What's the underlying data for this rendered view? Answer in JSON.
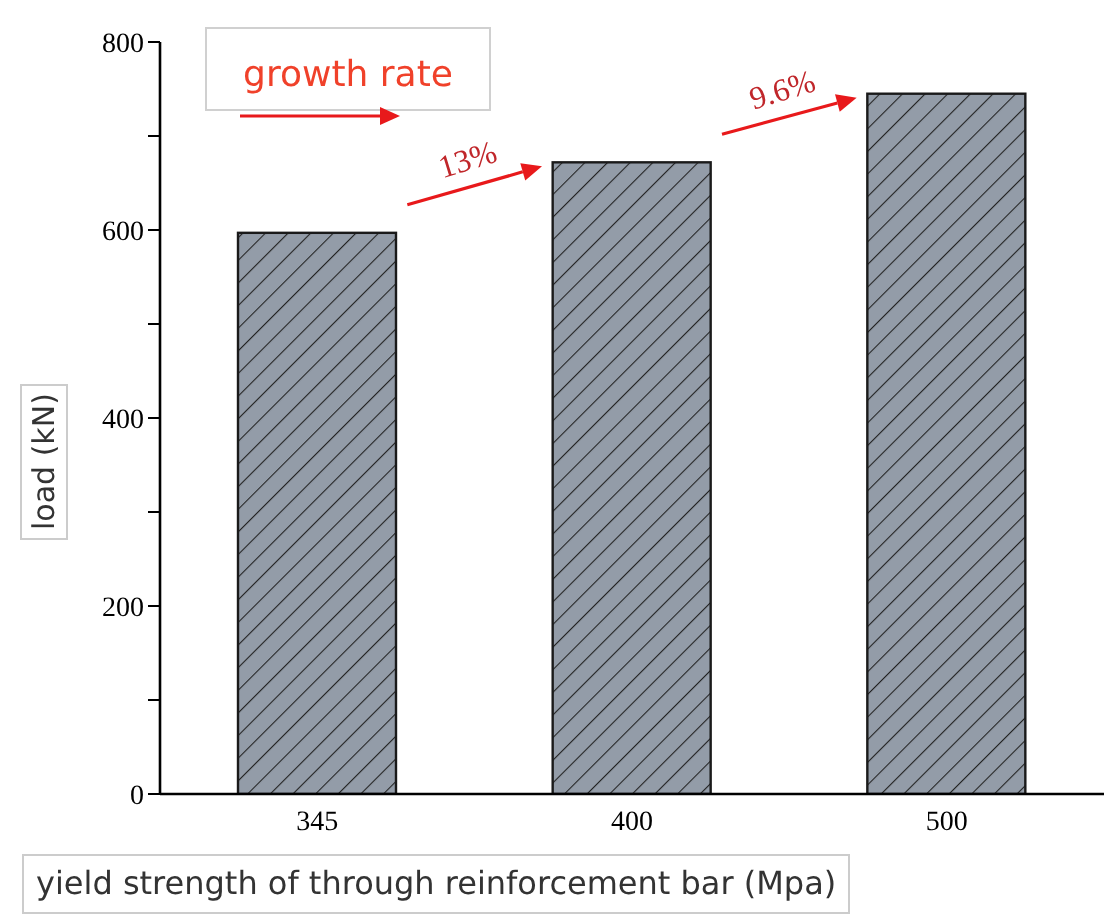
{
  "chart_data": {
    "type": "bar",
    "xlabel": "yield strength of through reinforcement bar (Mpa)",
    "ylabel": "load (kN)",
    "categories": [
      "345",
      "400",
      "500"
    ],
    "values": [
      597,
      672,
      745
    ],
    "color": "#939ca8",
    "ylim": [
      0,
      800
    ],
    "yticks": [
      0,
      {
        "value": 100,
        "label": null
      },
      200,
      {
        "value": 300,
        "label": null
      },
      400,
      {
        "value": 500,
        "label": null
      },
      600,
      {
        "value": 700,
        "label": null
      },
      800
    ],
    "annotations": [
      "growth rate",
      "13%",
      "9.6%"
    ],
    "grid": false,
    "legend": false
  }
}
